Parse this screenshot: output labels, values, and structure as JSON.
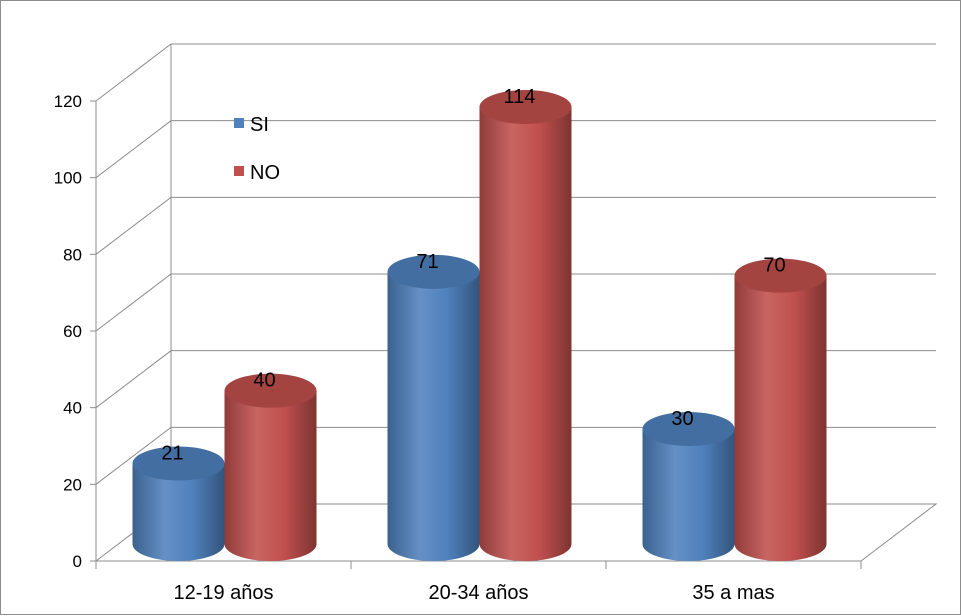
{
  "chart_data": {
    "type": "bar",
    "title": "",
    "xlabel": "",
    "ylabel": "",
    "categories": [
      "12-19 años",
      "20-34 años",
      "35 a mas"
    ],
    "series": [
      {
        "name": "SI",
        "values": [
          21,
          71,
          30
        ],
        "color": "#4f81bd"
      },
      {
        "name": "NO",
        "values": [
          40,
          114,
          70
        ],
        "color": "#c0504d"
      }
    ],
    "ylim": [
      0,
      120
    ],
    "yticks": [
      0,
      20,
      40,
      60,
      80,
      100,
      120
    ],
    "grid": true,
    "legend": "top-left",
    "style": "3d-cylinder"
  }
}
